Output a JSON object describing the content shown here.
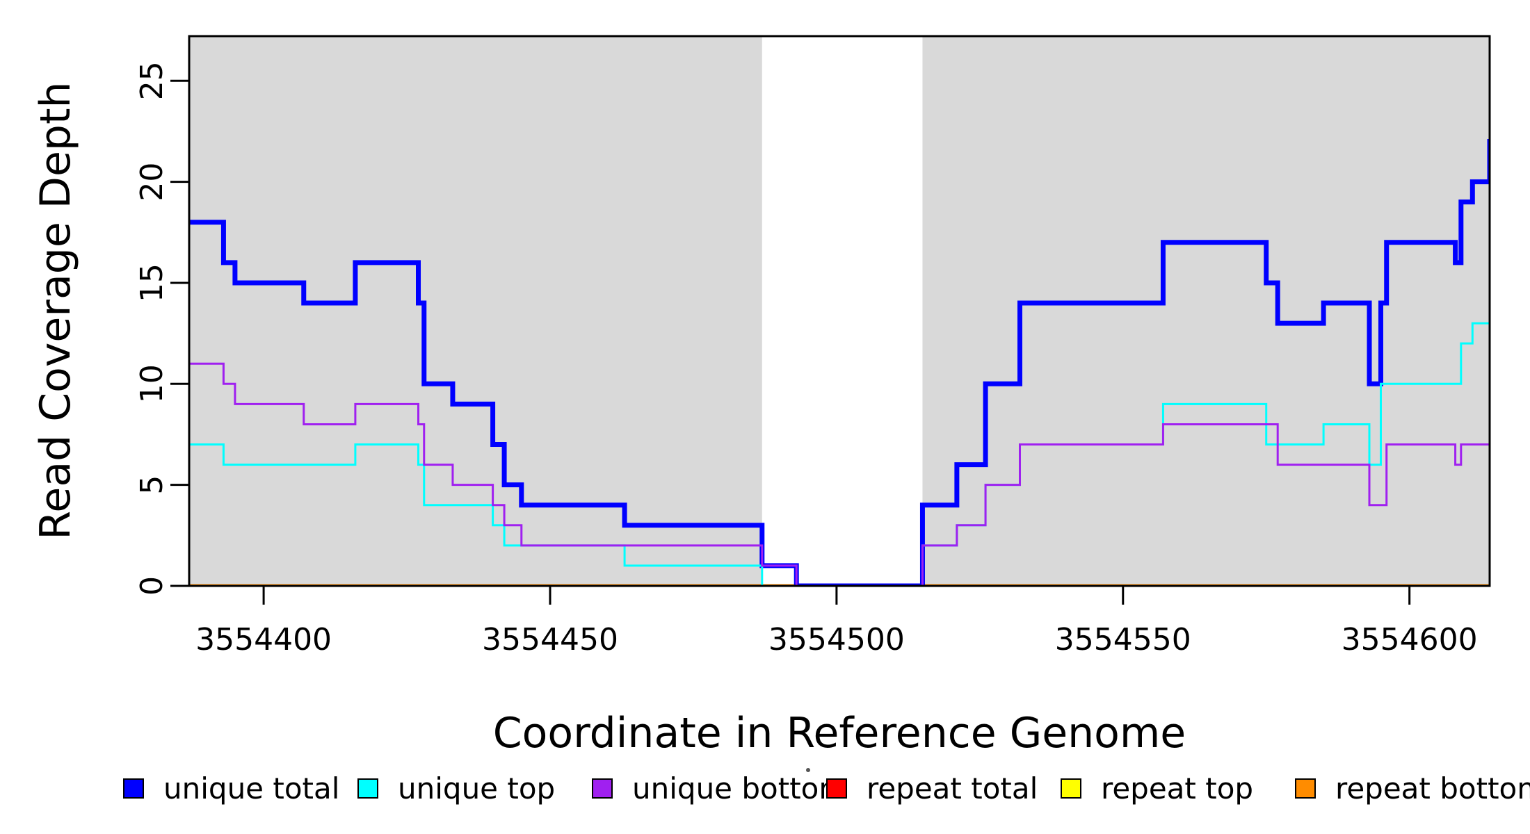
{
  "chart_data": {
    "type": "line",
    "subtype": "step-coverage-plot",
    "title": "",
    "xlabel": "Coordinate in Reference Genome",
    "ylabel": "Read Coverage Depth",
    "xlim": [
      3554387,
      3554614
    ],
    "ylim": [
      0,
      27.21
    ],
    "x_ticks": [
      3554400,
      3554450,
      3554500,
      3554550,
      3554600
    ],
    "y_ticks": [
      0,
      5,
      10,
      15,
      20,
      25
    ],
    "grid": false,
    "panel_shade_color": "#D9D9D9",
    "background_color": "#FFFFFF",
    "shaded_regions": [
      {
        "x_start": 3554387,
        "x_end": 3554487
      },
      {
        "x_start": 3554515,
        "x_end": 3554614
      }
    ],
    "gap_region": {
      "x_start": 3554487,
      "x_end": 3554515
    },
    "draw_order": [
      "repeat total",
      "repeat top",
      "repeat bottom",
      "unique total",
      "unique top",
      "unique bottom"
    ],
    "series": [
      {
        "name": "unique total",
        "color": "#0000FF",
        "line_width": 7,
        "segments": [
          [
            3554387,
            3554393,
            18
          ],
          [
            3554393,
            3554395,
            16
          ],
          [
            3554395,
            3554407,
            15
          ],
          [
            3554407,
            3554416,
            14
          ],
          [
            3554416,
            3554427,
            16
          ],
          [
            3554427,
            3554428,
            14
          ],
          [
            3554428,
            3554433,
            10
          ],
          [
            3554433,
            3554440,
            9
          ],
          [
            3554440,
            3554442,
            7
          ],
          [
            3554442,
            3554445,
            5
          ],
          [
            3554445,
            3554463,
            4
          ],
          [
            3554463,
            3554487,
            3
          ],
          [
            3554487,
            3554493,
            1
          ],
          [
            3554493,
            3554515,
            0
          ],
          [
            3554515,
            3554521,
            4
          ],
          [
            3554521,
            3554526,
            6
          ],
          [
            3554526,
            3554532,
            10
          ],
          [
            3554532,
            3554557,
            14
          ],
          [
            3554557,
            3554575,
            17
          ],
          [
            3554575,
            3554577,
            15
          ],
          [
            3554577,
            3554585,
            13
          ],
          [
            3554585,
            3554593,
            14
          ],
          [
            3554593,
            3554595,
            10
          ],
          [
            3554595,
            3554596,
            14
          ],
          [
            3554596,
            3554608,
            17
          ],
          [
            3554608,
            3554609,
            16
          ],
          [
            3554609,
            3554611,
            19
          ],
          [
            3554611,
            3554614,
            20
          ],
          [
            3554614,
            3554615,
            22
          ]
        ]
      },
      {
        "name": "unique top",
        "color": "#00FFFF",
        "line_width": 3,
        "segments": [
          [
            3554387,
            3554393,
            7
          ],
          [
            3554393,
            3554416,
            6
          ],
          [
            3554416,
            3554427,
            7
          ],
          [
            3554427,
            3554428,
            6
          ],
          [
            3554428,
            3554440,
            4
          ],
          [
            3554440,
            3554442,
            3
          ],
          [
            3554442,
            3554463,
            2
          ],
          [
            3554463,
            3554487,
            1
          ],
          [
            3554487,
            3554515,
            0
          ],
          [
            3554515,
            3554521,
            2
          ],
          [
            3554521,
            3554526,
            3
          ],
          [
            3554526,
            3554532,
            5
          ],
          [
            3554532,
            3554557,
            7
          ],
          [
            3554557,
            3554575,
            9
          ],
          [
            3554575,
            3554585,
            7
          ],
          [
            3554585,
            3554593,
            8
          ],
          [
            3554593,
            3554595,
            6
          ],
          [
            3554595,
            3554609,
            10
          ],
          [
            3554609,
            3554611,
            12
          ],
          [
            3554611,
            3554614,
            13
          ],
          [
            3554614,
            3554615,
            14
          ]
        ]
      },
      {
        "name": "unique bottom",
        "color": "#A020F0",
        "line_width": 3,
        "segments": [
          [
            3554387,
            3554393,
            11
          ],
          [
            3554393,
            3554395,
            10
          ],
          [
            3554395,
            3554407,
            9
          ],
          [
            3554407,
            3554416,
            8
          ],
          [
            3554416,
            3554427,
            9
          ],
          [
            3554427,
            3554428,
            8
          ],
          [
            3554428,
            3554433,
            6
          ],
          [
            3554433,
            3554440,
            5
          ],
          [
            3554440,
            3554442,
            4
          ],
          [
            3554442,
            3554445,
            3
          ],
          [
            3554445,
            3554487,
            2
          ],
          [
            3554487,
            3554493,
            1
          ],
          [
            3554493,
            3554515,
            0
          ],
          [
            3554515,
            3554521,
            2
          ],
          [
            3554521,
            3554526,
            3
          ],
          [
            3554526,
            3554532,
            5
          ],
          [
            3554532,
            3554557,
            7
          ],
          [
            3554557,
            3554577,
            8
          ],
          [
            3554577,
            3554593,
            6
          ],
          [
            3554593,
            3554596,
            4
          ],
          [
            3554596,
            3554608,
            7
          ],
          [
            3554608,
            3554609,
            6
          ],
          [
            3554609,
            3554614,
            7
          ],
          [
            3554614,
            3554615,
            8
          ]
        ]
      },
      {
        "name": "repeat total",
        "color": "#FF0000",
        "line_width": 3,
        "segments": [
          [
            3554387,
            3554615,
            0
          ]
        ]
      },
      {
        "name": "repeat top",
        "color": "#FFFF00",
        "line_width": 3,
        "segments": [
          [
            3554387,
            3554615,
            0
          ]
        ]
      },
      {
        "name": "repeat bottom",
        "color": "#FF8C00",
        "line_width": 5,
        "segments": [
          [
            3554387,
            3554615,
            0
          ]
        ]
      }
    ],
    "legend": {
      "position": "bottom",
      "entries": [
        {
          "label": "unique total",
          "color": "#0000FF"
        },
        {
          "label": "unique top",
          "color": "#00FFFF"
        },
        {
          "label": "unique bottom",
          "color": "#A020F0"
        },
        {
          "label": "repeat total",
          "color": "#FF0000"
        },
        {
          "label": "repeat top",
          "color": "#FFFF00"
        },
        {
          "label": "repeat bottom",
          "color": "#FF8C00"
        }
      ]
    }
  }
}
